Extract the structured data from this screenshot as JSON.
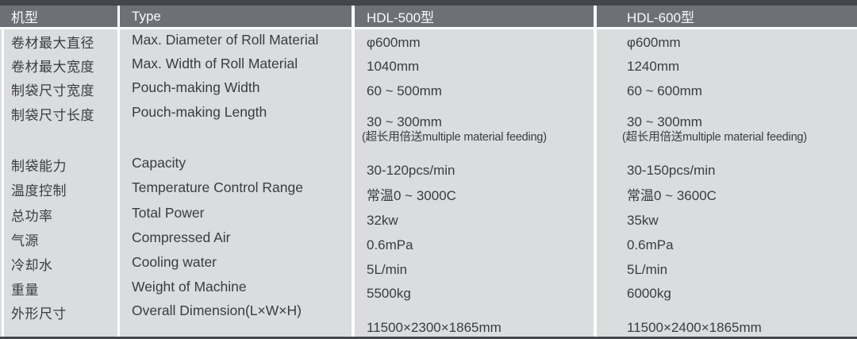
{
  "table": {
    "header": {
      "model_label": "机型",
      "type_label": "Type",
      "hdl500_label": "HDL-500型",
      "hdl600_label": "HDL-600型"
    },
    "rows": [
      {
        "cn": "卷材最大直径",
        "en": "Max. Diameter of Roll Material",
        "hdl500": "φ600mm",
        "hdl600": "φ600mm"
      },
      {
        "cn": "卷材最大宽度",
        "en": "Max. Width of Roll Material",
        "hdl500": "1040mm",
        "hdl600": "1240mm"
      },
      {
        "cn": "制袋尺寸宽度",
        "en": "Pouch-making Width",
        "hdl500": "60 ~ 500mm",
        "hdl600": "60 ~ 600mm"
      },
      {
        "cn": "制袋尺寸长度",
        "en": "Pouch-making Length",
        "hdl500": "30 ~ 300mm",
        "hdl500_note": "(超长用倍送multiple material feeding)",
        "hdl600": "30 ~ 300mm",
        "hdl600_note": "(超长用倍送multiple material feeding)"
      },
      {
        "cn": "制袋能力",
        "en": "Capacity",
        "hdl500": "30-120pcs/min",
        "hdl600": "30-150pcs/min"
      },
      {
        "cn": "温度控制",
        "en": "Temperature Control Range",
        "hdl500": "常温0 ~ 3000C",
        "hdl600": "常温0 ~ 3600C"
      },
      {
        "cn": "总功率",
        "en": "Total Power",
        "hdl500": "32kw",
        "hdl600": "35kw"
      },
      {
        "cn": "气源",
        "en": "Compressed Air",
        "hdl500": "0.6mPa",
        "hdl600": "0.6mPa"
      },
      {
        "cn": "冷却水",
        "en": "Cooling water",
        "hdl500": "5L/min",
        "hdl600": "5L/min"
      },
      {
        "cn": "重量",
        "en": "Weight of Machine",
        "hdl500": "5500kg",
        "hdl600": "6000kg"
      },
      {
        "cn": "外形尺寸",
        "en": "Overall Dimension(L×W×H)",
        "hdl500": "11500×2300×1865mm",
        "hdl600": "11500×2400×1865mm"
      }
    ],
    "colors": {
      "header_bg": "#6d7176",
      "top_strip": "#43464a",
      "body_bg": "#dbdcde",
      "text": "#3b3c3e",
      "header_text": "#f8f9fa",
      "divider": "#ffffff"
    }
  }
}
